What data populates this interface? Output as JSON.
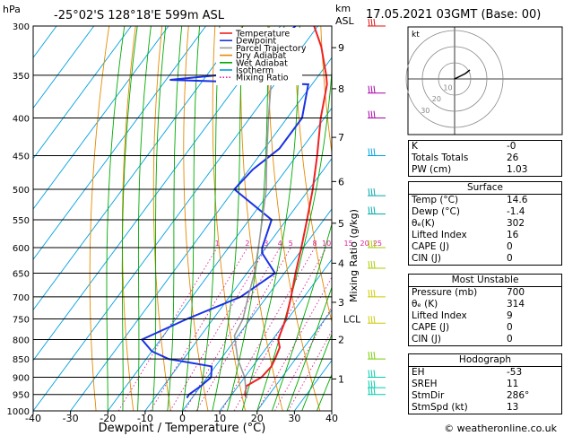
{
  "header": {
    "hpa_label": "hPa",
    "title": "-25°02'S 128°18'E 599m ASL",
    "km_label": "km",
    "asl_label": "ASL",
    "date": "17.05.2021 03GMT (Base: 00)"
  },
  "chart_data": {
    "type": "line",
    "subtype": "skew-T log-P",
    "xlabel": "Dewpoint / Temperature (°C)",
    "x_ticks": [
      -40,
      -30,
      -20,
      -10,
      0,
      10,
      20,
      30,
      40
    ],
    "xlim": [
      -40,
      40
    ],
    "ylabel_right": "Mixing Ratio (g/kg)",
    "pressure_ticks": [
      300,
      350,
      400,
      450,
      500,
      550,
      600,
      650,
      700,
      750,
      800,
      850,
      900,
      950,
      1000
    ],
    "ylim_hpa": [
      1000,
      300
    ],
    "km_ticks": [
      {
        "label": "9",
        "p": 321
      },
      {
        "label": "8",
        "p": 365
      },
      {
        "label": "7",
        "p": 425
      },
      {
        "label": "6",
        "p": 488
      },
      {
        "label": "5",
        "p": 556
      },
      {
        "label": "4",
        "p": 630
      },
      {
        "label": "3",
        "p": 712
      },
      {
        "label": "2",
        "p": 800
      },
      {
        "label": "1",
        "p": 905
      }
    ],
    "lcl": {
      "label": "LCL",
      "p": 750
    },
    "mixing_ratio_labels": [
      "1",
      "2",
      "3",
      "4",
      "5",
      "8",
      "10",
      "15",
      "20",
      "25"
    ],
    "legend": [
      {
        "name": "Temperature",
        "color": "#ee2222",
        "dash": "solid"
      },
      {
        "name": "Dewpoint",
        "color": "#1a32e6",
        "dash": "solid"
      },
      {
        "name": "Parcel Trajectory",
        "color": "#999999",
        "dash": "solid"
      },
      {
        "name": "Dry Adiabat",
        "color": "#e58a00",
        "dash": "solid"
      },
      {
        "name": "Wet Adiabat",
        "color": "#00aa00",
        "dash": "solid"
      },
      {
        "name": "Isotherm",
        "color": "#00a0e0",
        "dash": "solid"
      },
      {
        "name": "Mixing Ratio",
        "color": "#dd2299",
        "dash": "dotted"
      }
    ],
    "series": [
      {
        "name": "Temperature",
        "color": "#ee2222",
        "points": [
          [
            14.6,
            960
          ],
          [
            13.5,
            950
          ],
          [
            12.2,
            925
          ],
          [
            14.5,
            900
          ],
          [
            15.0,
            870
          ],
          [
            14.5,
            850
          ],
          [
            13.5,
            820
          ],
          [
            11.5,
            800
          ],
          [
            9.5,
            750
          ],
          [
            6.5,
            700
          ],
          [
            3.0,
            650
          ],
          [
            -0.5,
            600
          ],
          [
            -4.5,
            550
          ],
          [
            -9.0,
            500
          ],
          [
            -14.5,
            450
          ],
          [
            -21.0,
            400
          ],
          [
            -26.0,
            360
          ],
          [
            -28.0,
            350
          ],
          [
            -35.0,
            320
          ],
          [
            -41.0,
            300
          ]
        ]
      },
      {
        "name": "Dewpoint",
        "color": "#1a32e6",
        "points": [
          [
            -1.4,
            960
          ],
          [
            -1.5,
            950
          ],
          [
            0.0,
            925
          ],
          [
            1.0,
            900
          ],
          [
            -1.0,
            870
          ],
          [
            -14.0,
            850
          ],
          [
            -20.0,
            830
          ],
          [
            -25.0,
            800
          ],
          [
            -17.0,
            750
          ],
          [
            -7.0,
            700
          ],
          [
            -2.5,
            650
          ],
          [
            -10.0,
            610
          ],
          [
            -11.0,
            600
          ],
          [
            -14.0,
            550
          ],
          [
            -30.0,
            500
          ],
          [
            -29.0,
            470
          ],
          [
            -26.0,
            440
          ],
          [
            -26.0,
            400
          ],
          [
            -31.0,
            360
          ],
          [
            -69.0,
            355
          ],
          [
            -45.0,
            345
          ],
          [
            -50.0,
            330
          ],
          [
            -45.0,
            320
          ],
          [
            -47.0,
            310
          ],
          [
            -46.0,
            300
          ]
        ]
      },
      {
        "name": "Parcel Trajectory",
        "color": "#999999",
        "points": [
          [
            14.6,
            960
          ],
          [
            10.0,
            900
          ],
          [
            4.5,
            850
          ],
          [
            -1.0,
            790
          ],
          [
            -2.0,
            750
          ],
          [
            -5.0,
            700
          ],
          [
            -8.0,
            650
          ],
          [
            -12.0,
            600
          ],
          [
            -16.5,
            550
          ],
          [
            -21.5,
            500
          ],
          [
            -28.0,
            450
          ],
          [
            -35.0,
            400
          ],
          [
            -41.0,
            360
          ],
          [
            -45.0,
            330
          ],
          [
            -49.0,
            300
          ]
        ]
      }
    ],
    "isotherm_spacing_c": 10,
    "dry_adiabats_theta_k": [
      250,
      260,
      270,
      280,
      290,
      300,
      310,
      320,
      330,
      340,
      350,
      360,
      370,
      380,
      390,
      400,
      410,
      420,
      430,
      440
    ],
    "wet_adiabats_c": [
      -20,
      -16,
      -12,
      -8,
      -4,
      0,
      4,
      8,
      12,
      16,
      20,
      24,
      28,
      32,
      36
    ],
    "wind_barbs": [
      {
        "p": 300,
        "color": "#dd1111"
      },
      {
        "p": 370,
        "color": "#aa00aa"
      },
      {
        "p": 400,
        "color": "#aa00aa"
      },
      {
        "p": 450,
        "color": "#00a0e0"
      },
      {
        "p": 510,
        "color": "#00aaaa"
      },
      {
        "p": 540,
        "color": "#00aaaa"
      },
      {
        "p": 600,
        "color": "#aacc00"
      },
      {
        "p": 640,
        "color": "#aacc00"
      },
      {
        "p": 700,
        "color": "#cccc00"
      },
      {
        "p": 760,
        "color": "#cccc00"
      },
      {
        "p": 850,
        "color": "#77cc00"
      },
      {
        "p": 900,
        "color": "#00ccaa"
      },
      {
        "p": 930,
        "color": "#00ccaa"
      },
      {
        "p": 950,
        "color": "#00ccaa"
      }
    ],
    "hodograph": {
      "label": "kt",
      "ring_labels": [
        "10",
        "20",
        "30"
      ]
    }
  },
  "indices": {
    "k_label": "K",
    "k_value": "-0",
    "tt_label": "Totals Totals",
    "tt_value": "26",
    "pw_label": "PW (cm)",
    "pw_value": "1.03"
  },
  "surface": {
    "title": "Surface",
    "rows": [
      {
        "label": "Temp (°C)",
        "value": "14.6"
      },
      {
        "label": "Dewp (°C)",
        "value": "-1.4"
      },
      {
        "label": "θₑ(K)",
        "value": "302"
      },
      {
        "label": "Lifted Index",
        "value": "16"
      },
      {
        "label": "CAPE (J)",
        "value": "0"
      },
      {
        "label": "CIN (J)",
        "value": "0"
      }
    ]
  },
  "most_unstable": {
    "title": "Most Unstable",
    "rows": [
      {
        "label": "Pressure (mb)",
        "value": "700"
      },
      {
        "label": "θₑ (K)",
        "value": "314"
      },
      {
        "label": "Lifted Index",
        "value": "9"
      },
      {
        "label": "CAPE (J)",
        "value": "0"
      },
      {
        "label": "CIN (J)",
        "value": "0"
      }
    ]
  },
  "hodograph_table": {
    "title": "Hodograph",
    "rows": [
      {
        "label": "EH",
        "value": "-53"
      },
      {
        "label": "SREH",
        "value": "11"
      },
      {
        "label": "StmDir",
        "value": "286°"
      },
      {
        "label": "StmSpd (kt)",
        "value": "13"
      }
    ]
  },
  "footer": {
    "credit": "© weatheronline.co.uk"
  }
}
